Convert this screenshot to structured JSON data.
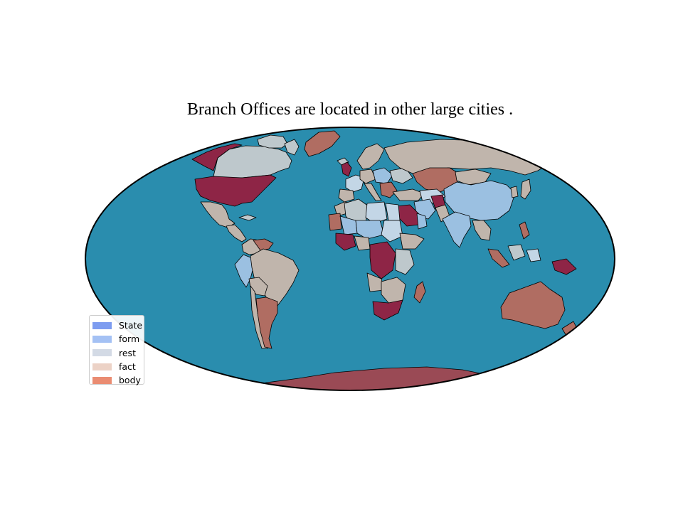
{
  "title": "Branch Offices are located in other large cities .",
  "map": {
    "projection": "mollweide",
    "ocean_color": "#2a8dae",
    "outline_color": "#000000"
  },
  "legend": {
    "location": "lower-left",
    "items": [
      {
        "label": "State",
        "color": "#7d9cf0"
      },
      {
        "label": "form",
        "color": "#a4c1f4"
      },
      {
        "label": "rest",
        "color": "#d3dae5"
      },
      {
        "label": "fact",
        "color": "#ecd2c6"
      },
      {
        "label": "body",
        "color": "#ea8c72"
      }
    ]
  },
  "palette": {
    "maroon": "#8e2546",
    "red_brown": "#b06d62",
    "tan": "#c0b5ac",
    "gray_blue": "#bec8cc",
    "light_blue": "#9bc0e1",
    "pale_blue": "#c3d6e6",
    "dark_red": "#9a4a55"
  }
}
